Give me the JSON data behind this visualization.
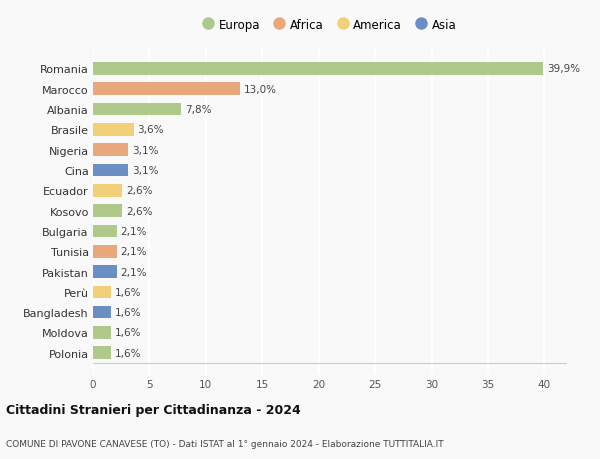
{
  "countries": [
    "Romania",
    "Marocco",
    "Albania",
    "Brasile",
    "Nigeria",
    "Cina",
    "Ecuador",
    "Kosovo",
    "Bulgaria",
    "Tunisia",
    "Pakistan",
    "Perù",
    "Bangladesh",
    "Moldova",
    "Polonia"
  ],
  "values": [
    39.9,
    13.0,
    7.8,
    3.6,
    3.1,
    3.1,
    2.6,
    2.6,
    2.1,
    2.1,
    2.1,
    1.6,
    1.6,
    1.6,
    1.6
  ],
  "labels": [
    "39,9%",
    "13,0%",
    "7,8%",
    "3,6%",
    "3,1%",
    "3,1%",
    "2,6%",
    "2,6%",
    "2,1%",
    "2,1%",
    "2,1%",
    "1,6%",
    "1,6%",
    "1,6%",
    "1,6%"
  ],
  "continents": [
    "Europa",
    "Africa",
    "Europa",
    "America",
    "Africa",
    "Asia",
    "America",
    "Europa",
    "Europa",
    "Africa",
    "Asia",
    "America",
    "Asia",
    "Europa",
    "Europa"
  ],
  "continent_colors": {
    "Europa": "#aec98a",
    "Africa": "#e8a87c",
    "America": "#f2d07a",
    "Asia": "#6b8fc4"
  },
  "legend_order": [
    "Europa",
    "Africa",
    "America",
    "Asia"
  ],
  "title": "Cittadini Stranieri per Cittadinanza - 2024",
  "subtitle": "COMUNE DI PAVONE CANAVESE (TO) - Dati ISTAT al 1° gennaio 2024 - Elaborazione TUTTITALIA.IT",
  "xlim": [
    0,
    42
  ],
  "xticks": [
    0,
    5,
    10,
    15,
    20,
    25,
    30,
    35,
    40
  ],
  "bg_color": "#f9f9f9",
  "grid_color": "#ffffff"
}
